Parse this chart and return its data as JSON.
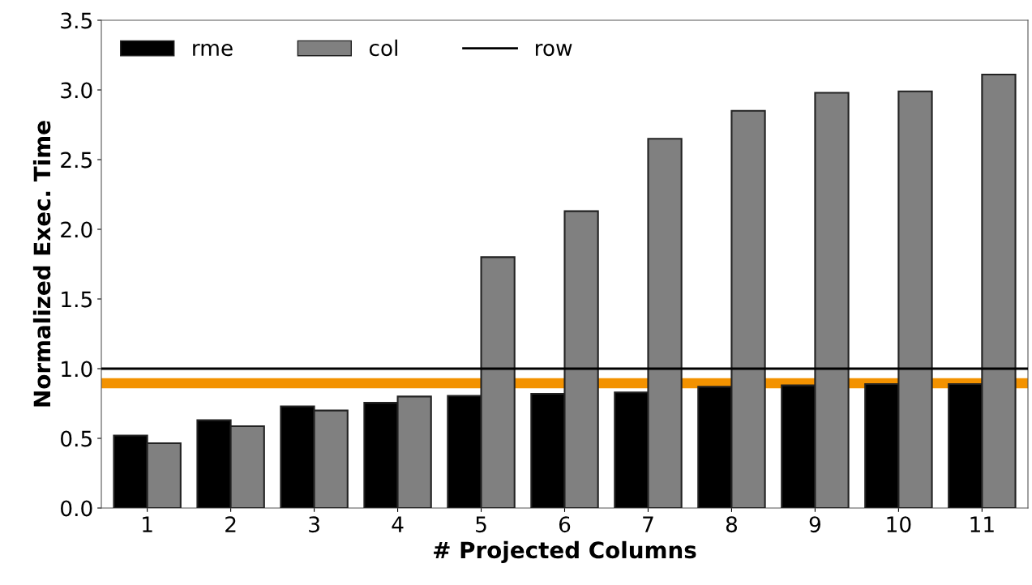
{
  "chart_data": {
    "type": "bar",
    "xlabel": "# Projected Columns",
    "ylabel": "Normalized Exec. Time",
    "categories": [
      "1",
      "2",
      "3",
      "4",
      "5",
      "6",
      "7",
      "8",
      "9",
      "10",
      "11"
    ],
    "series": [
      {
        "name": "rme",
        "color": "#000000",
        "values": [
          0.52,
          0.63,
          0.73,
          0.755,
          0.805,
          0.82,
          0.83,
          0.87,
          0.88,
          0.89,
          0.89
        ]
      },
      {
        "name": "col",
        "color": "#808080",
        "values": [
          0.465,
          0.587,
          0.7,
          0.8,
          1.8,
          2.13,
          2.65,
          2.85,
          2.98,
          2.99,
          3.11
        ]
      }
    ],
    "ref_lines": [
      {
        "axis": "y",
        "value": 1.0,
        "label": "row",
        "color": "#000000"
      },
      {
        "axis": "y",
        "value": 0.895,
        "color": "#f39200"
      }
    ],
    "ylim": [
      0,
      3.5
    ],
    "yticks": [
      {
        "value": 0,
        "label": "0.0"
      },
      0.5,
      {
        "value": 1,
        "label": "1.0"
      },
      1.5,
      {
        "value": 2,
        "label": "2.0"
      },
      2.5,
      {
        "value": 3,
        "label": "3.0"
      },
      3.5
    ],
    "grid": false,
    "legend": "top left"
  }
}
